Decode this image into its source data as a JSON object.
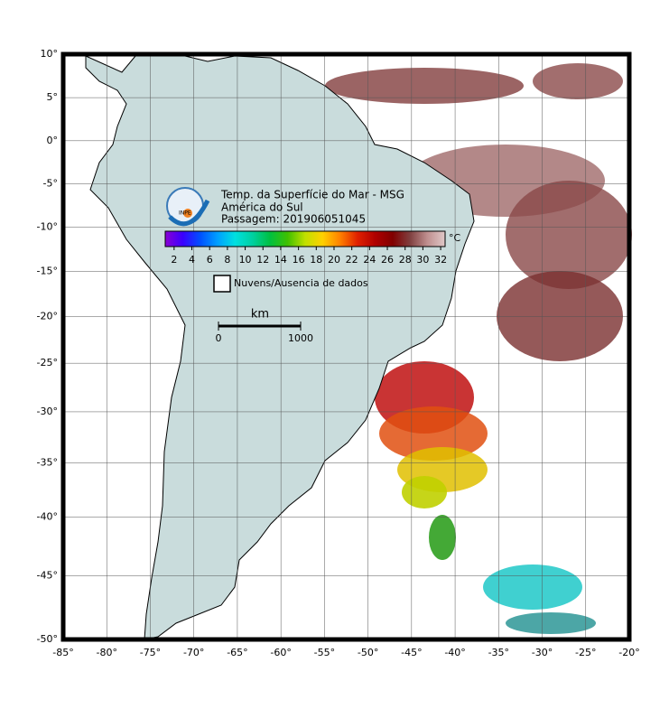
{
  "header": {
    "title": "Temp. da Superfície do Mar - MSG",
    "region": "América do Sul",
    "pass": "Passagem: 201906051045",
    "logo": "INPE"
  },
  "map": {
    "xlim": [
      -85,
      -20
    ],
    "ylim": [
      -50,
      10
    ],
    "lon_ticks": [
      {
        "value": -85,
        "label": "-85°"
      },
      {
        "value": -80,
        "label": "-80°"
      },
      {
        "value": -75,
        "label": "-75°"
      },
      {
        "value": -70,
        "label": "-70°"
      },
      {
        "value": -65,
        "label": "-65°"
      },
      {
        "value": -60,
        "label": "-60°"
      },
      {
        "value": -55,
        "label": "-55°"
      },
      {
        "value": -50,
        "label": "-50°"
      },
      {
        "value": -45,
        "label": "-45°"
      },
      {
        "value": -40,
        "label": "-40°"
      },
      {
        "value": -35,
        "label": "-35°"
      },
      {
        "value": -30,
        "label": "-30°"
      },
      {
        "value": -25,
        "label": "-25°"
      },
      {
        "value": -20,
        "label": "-20°"
      }
    ],
    "lat_ticks": [
      {
        "value": 10,
        "label": "10°"
      },
      {
        "value": 5,
        "label": "5°"
      },
      {
        "value": 0,
        "label": "0°"
      },
      {
        "value": -5,
        "label": "-5°"
      },
      {
        "value": -10,
        "label": "-10°"
      },
      {
        "value": -15,
        "label": "-15°"
      },
      {
        "value": -20,
        "label": "-20°"
      },
      {
        "value": -25,
        "label": "-25°"
      },
      {
        "value": -30,
        "label": "-30°"
      },
      {
        "value": -35,
        "label": "-35°"
      },
      {
        "value": -40,
        "label": "-40°"
      },
      {
        "value": -45,
        "label": "-45°"
      },
      {
        "value": -50,
        "label": "-50°"
      }
    ]
  },
  "colorbar": {
    "unit": "°C",
    "lim": [
      1,
      32.5
    ],
    "ticks": [
      2,
      4,
      6,
      8,
      10,
      12,
      14,
      16,
      18,
      20,
      22,
      24,
      26,
      28,
      30,
      32
    ],
    "colors": [
      "#8a00d4",
      "#3a00ff",
      "#0050ff",
      "#00a0ff",
      "#00e0e0",
      "#00d0a0",
      "#00c040",
      "#40c000",
      "#c0e000",
      "#ffd000",
      "#ff8000",
      "#e02000",
      "#b00000",
      "#800000",
      "#804040",
      "#c09090",
      "#e0c8c8"
    ]
  },
  "legend": {
    "label": "Nuvens/Ausencia de dados"
  },
  "scale": {
    "unit": "km",
    "ticks": [
      0,
      1000
    ]
  }
}
